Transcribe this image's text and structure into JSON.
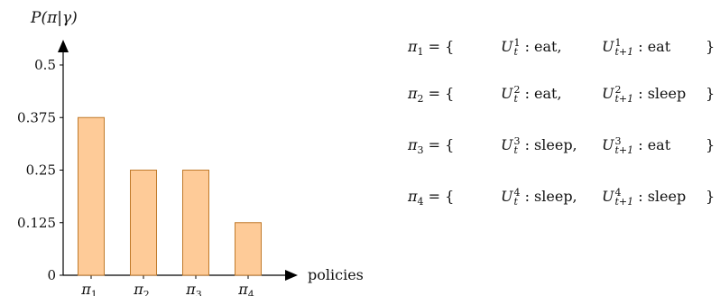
{
  "chart_data": {
    "type": "bar",
    "categories": [
      "π1",
      "π2",
      "π3",
      "π4"
    ],
    "values": [
      0.375,
      0.25,
      0.25,
      0.125
    ],
    "ylabel": "P(π|γ)",
    "xlabel": "policies",
    "yticks": [
      "0",
      "0.125",
      "0.25",
      "0.375",
      "0.5"
    ],
    "ytick_values": [
      0,
      0.125,
      0.25,
      0.375,
      0.5
    ],
    "ylim": [
      0,
      0.5
    ],
    "bar_fill": "#fecb98",
    "bar_stroke": "#c07a2a",
    "grid": false
  },
  "policies": [
    {
      "name": "π",
      "index": "1",
      "u1_sup": "1",
      "u1_sub": "t",
      "a1": "eat,",
      "u2_sup": "1",
      "u2_sub": "t+1",
      "a2": "eat"
    },
    {
      "name": "π",
      "index": "2",
      "u1_sup": "2",
      "u1_sub": "t",
      "a1": "eat,",
      "u2_sup": "2",
      "u2_sub": "t+1",
      "a2": "sleep"
    },
    {
      "name": "π",
      "index": "3",
      "u1_sup": "3",
      "u1_sub": "t",
      "a1": "sleep,",
      "u2_sup": "3",
      "u2_sub": "t+1",
      "a2": "eat"
    },
    {
      "name": "π",
      "index": "4",
      "u1_sup": "4",
      "u1_sub": "t",
      "a1": "sleep,",
      "u2_sup": "4",
      "u2_sub": "t+1",
      "a2": "sleep"
    }
  ],
  "text": {
    "eq": "=",
    "open": "{",
    "close": "}",
    "U": "U",
    "colon": ":"
  }
}
